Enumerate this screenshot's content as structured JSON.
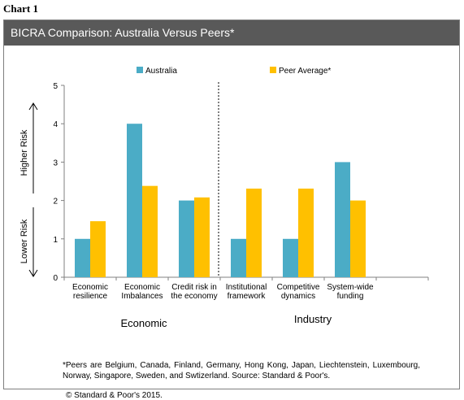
{
  "header": {
    "chart_label": "Chart 1",
    "title": "BICRA Comparison: Australia Versus Peers*"
  },
  "chart_data": {
    "type": "bar",
    "title": "BICRA Comparison: Australia Versus Peers*",
    "categories": [
      [
        "Economic",
        "resilience"
      ],
      [
        "Economic",
        "Imbalances"
      ],
      [
        "Credit risk in",
        "the economy"
      ],
      [
        "Institutional",
        "framework"
      ],
      [
        "Competitive",
        "dynamics"
      ],
      [
        "System-wide",
        "funding"
      ]
    ],
    "series": [
      {
        "name": "Australia",
        "color": "#4bacc6",
        "values": [
          1,
          4,
          2,
          1,
          1,
          3
        ]
      },
      {
        "name": "Peer Average*",
        "color": "#ffc000",
        "values": [
          1.46,
          2.38,
          2.08,
          2.31,
          2.31,
          2.0
        ]
      }
    ],
    "ylim": [
      0,
      5
    ],
    "yticks": [
      0,
      1,
      2,
      3,
      4,
      5
    ],
    "group_labels": [
      "Economic",
      "Industry"
    ],
    "side_labels": {
      "upper": "Higher Risk",
      "lower": "Lower Risk"
    },
    "legend_position": "top",
    "divider_after_category": 3,
    "grid": false
  },
  "footnote": "*Peers are Belgium, Canada, Finland, Germany, Hong Kong, Japan, Liechtenstein, Luxembourg, Norway, Singapore, Sweden, and Swtizerland. Source: Standard & Poor's.",
  "copyright": "© Standard & Poor's 2015."
}
